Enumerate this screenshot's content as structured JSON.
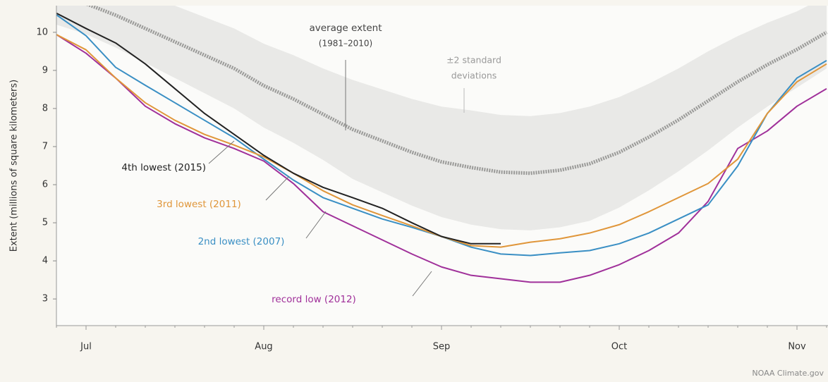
{
  "chart_data": {
    "type": "line",
    "y_label": "Extent (millions of square kilometers)",
    "credit": "NOAA Climate.gov",
    "categories": [
      null,
      "Jul",
      null,
      null,
      null,
      null,
      null,
      "Aug",
      null,
      null,
      null,
      null,
      null,
      "Sep",
      null,
      null,
      null,
      null,
      null,
      "Oct",
      null,
      null,
      null,
      null,
      null,
      "Nov",
      null
    ],
    "ylim": [
      2.3,
      10.7
    ],
    "yticks": [
      3,
      4,
      5,
      6,
      7,
      8,
      9,
      10
    ],
    "band": {
      "label_lines": [
        "±2 standard",
        "deviations"
      ],
      "color": "#e9e9e7",
      "upper": [
        11.8,
        11.55,
        11.3,
        11.0,
        10.7,
        10.4,
        10.1,
        9.7,
        9.4,
        9.05,
        8.75,
        8.5,
        8.25,
        8.05,
        7.95,
        7.83,
        7.8,
        7.88,
        8.05,
        8.3,
        8.65,
        9.05,
        9.5,
        9.9,
        10.25,
        10.55,
        10.95
      ],
      "lower": [
        10.2,
        9.95,
        9.6,
        9.2,
        8.8,
        8.4,
        8.0,
        7.5,
        7.1,
        6.65,
        6.15,
        5.8,
        5.45,
        5.15,
        4.95,
        4.83,
        4.8,
        4.88,
        5.05,
        5.4,
        5.85,
        6.35,
        6.9,
        7.5,
        8.05,
        8.55,
        9.05
      ]
    },
    "average_period": "(1981–2010)",
    "series": [
      {
        "name": "average extent",
        "color": "#9a9a98",
        "values": [
          11.0,
          10.75,
          10.45,
          10.1,
          9.75,
          9.4,
          9.05,
          8.6,
          8.25,
          7.85,
          7.45,
          7.15,
          6.85,
          6.6,
          6.45,
          6.33,
          6.3,
          6.38,
          6.55,
          6.85,
          7.25,
          7.7,
          8.2,
          8.7,
          9.15,
          9.55,
          10.0
        ]
      },
      {
        "name": "record low (2012)",
        "color": "#a0309a",
        "values": [
          9.94,
          9.45,
          8.8,
          8.06,
          7.6,
          7.23,
          6.95,
          6.62,
          6.03,
          5.29,
          4.92,
          4.55,
          4.18,
          3.84,
          3.62,
          3.53,
          3.44,
          3.44,
          3.62,
          3.9,
          4.27,
          4.73,
          5.56,
          6.95,
          7.41,
          8.06,
          8.52
        ]
      },
      {
        "name": "2nd lowest (2007)",
        "color": "#3a8fc4",
        "values": [
          10.46,
          9.91,
          9.08,
          8.61,
          8.15,
          7.69,
          7.23,
          6.67,
          6.12,
          5.66,
          5.38,
          5.1,
          4.88,
          4.64,
          4.36,
          4.18,
          4.14,
          4.21,
          4.27,
          4.45,
          4.73,
          5.1,
          5.47,
          6.49,
          7.87,
          8.8,
          9.26
        ]
      },
      {
        "name": "3rd lowest (2011)",
        "color": "#e0963a",
        "values": [
          9.94,
          9.54,
          8.8,
          8.15,
          7.69,
          7.32,
          7.04,
          6.73,
          6.3,
          5.84,
          5.47,
          5.19,
          4.92,
          4.64,
          4.4,
          4.36,
          4.49,
          4.58,
          4.73,
          4.95,
          5.29,
          5.66,
          6.03,
          6.67,
          7.87,
          8.7,
          9.17
        ]
      },
      {
        "name": "4th lowest (2015)",
        "color": "#222222",
        "values": [
          10.5,
          10.1,
          9.72,
          9.17,
          8.52,
          7.87,
          7.32,
          6.77,
          6.3,
          5.93,
          5.66,
          5.38,
          5.0,
          4.64,
          4.45,
          4.45,
          null,
          null,
          null,
          null,
          null,
          null,
          null,
          null,
          null,
          null,
          null
        ]
      }
    ]
  }
}
